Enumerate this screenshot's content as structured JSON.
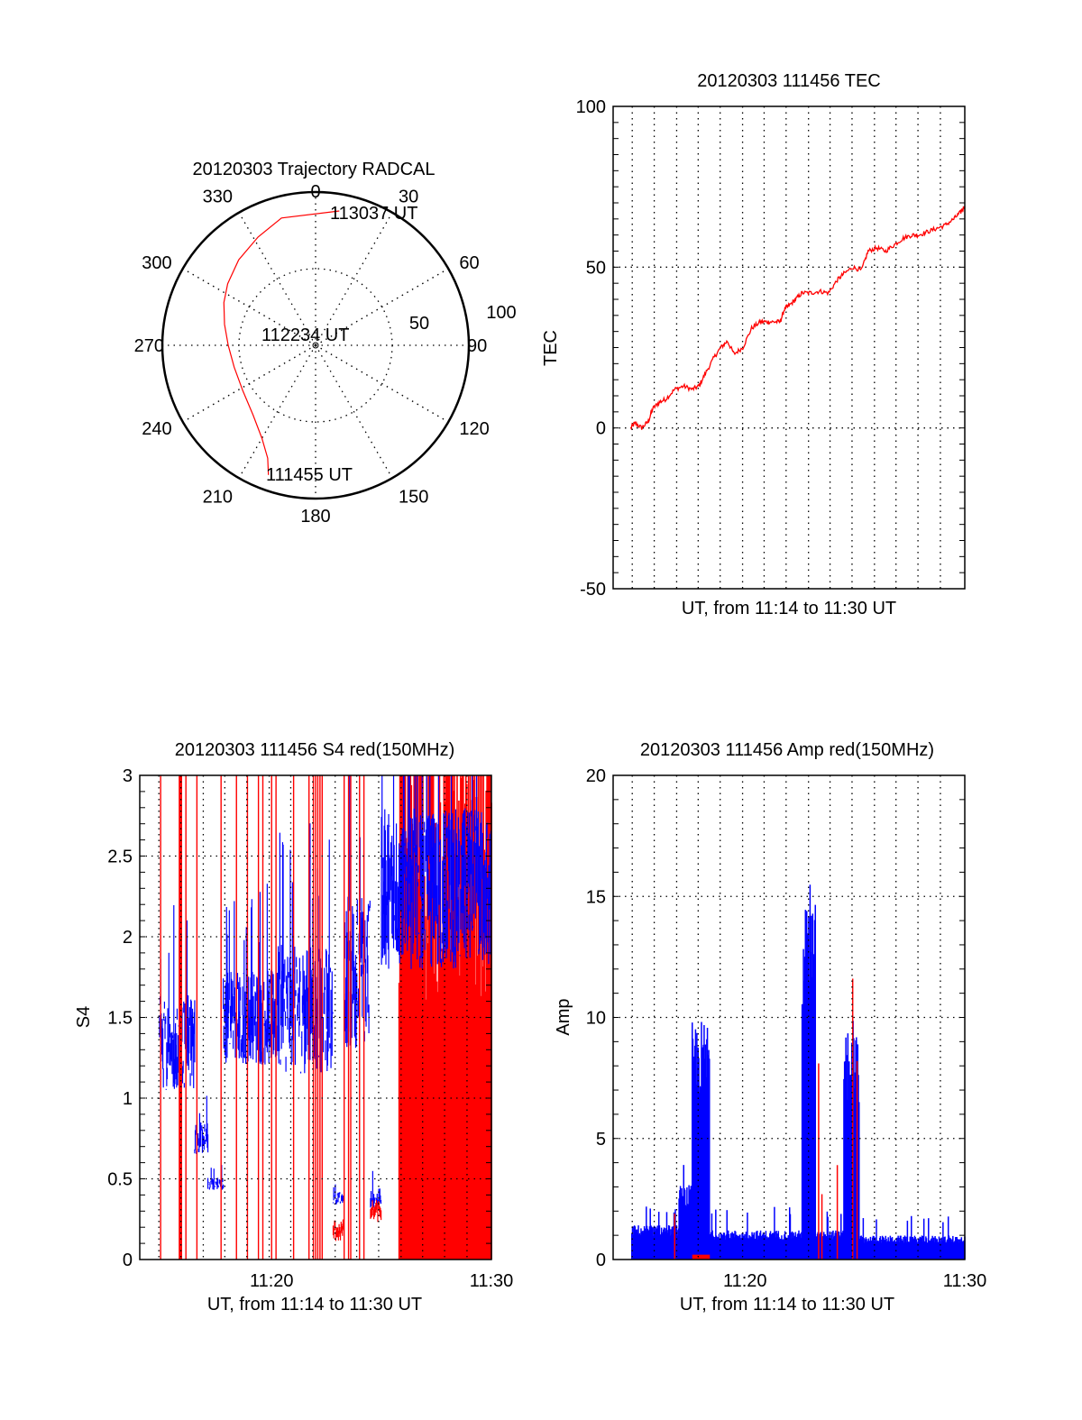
{
  "chart_data": [
    {
      "id": "trajectory",
      "type": "polar",
      "title": "20120303 Trajectory RADCAL",
      "radial_range": [
        0,
        100
      ],
      "radial_ticks": [
        50,
        100
      ],
      "angle_ticks": [
        "0",
        "30",
        "60",
        "90",
        "120",
        "150",
        "180",
        "210",
        "240",
        "270",
        "300",
        "330"
      ],
      "angle_tick_values": [
        0,
        30,
        60,
        90,
        120,
        150,
        180,
        210,
        240,
        270,
        300,
        330
      ],
      "grid": true,
      "line_color": "#ff0000",
      "trajectory": [
        {
          "az": 200,
          "r": 90
        },
        {
          "az": 203,
          "r": 80
        },
        {
          "az": 210,
          "r": 70
        },
        {
          "az": 222,
          "r": 61
        },
        {
          "az": 238,
          "r": 56
        },
        {
          "az": 255,
          "r": 55
        },
        {
          "az": 270,
          "r": 57
        },
        {
          "az": 283,
          "r": 61
        },
        {
          "az": 295,
          "r": 66
        },
        {
          "az": 305,
          "r": 70
        },
        {
          "az": 318,
          "r": 75
        },
        {
          "az": 332,
          "r": 80
        },
        {
          "az": 345,
          "r": 86
        },
        {
          "az": 10,
          "r": 89
        }
      ],
      "annotations": [
        {
          "text": "111455 UT",
          "az": 200,
          "r": 90
        },
        {
          "text": "112234 UT",
          "az": 0,
          "r": 0
        },
        {
          "text": "113037 UT",
          "az": 10,
          "r": 89
        }
      ]
    },
    {
      "id": "tec",
      "type": "line",
      "title": "20120303 111456 TEC",
      "xlabel": "UT, from 11:14 to 11:30 UT",
      "ylabel": "TEC",
      "xlim_minutes": [
        0,
        16
      ],
      "ylim": [
        -50,
        100
      ],
      "yticks": [
        "-50",
        "0",
        "50",
        "100"
      ],
      "ytick_values": [
        -50,
        0,
        50,
        100
      ],
      "grid": true,
      "color": "#ff0000",
      "x_minutes": [
        0.8,
        1.0,
        1.3,
        1.6,
        1.8,
        2.1,
        2.4,
        2.8,
        3.2,
        3.6,
        3.9,
        4.2,
        4.6,
        4.9,
        5.2,
        5.5,
        5.9,
        6.3,
        6.7,
        7.0,
        7.3,
        7.6,
        7.8,
        8.0,
        8.3,
        8.6,
        9.0,
        9.4,
        9.8,
        10.2,
        10.5,
        10.9,
        11.3,
        11.6,
        12.0,
        12.4,
        12.8,
        13.2,
        13.6,
        13.9,
        14.3,
        14.7,
        15.1,
        15.5,
        15.8,
        16.0
      ],
      "values": [
        0,
        1.5,
        0,
        2,
        6,
        8,
        9,
        12,
        13,
        12,
        13,
        17,
        22,
        25,
        27,
        23,
        25,
        31,
        33,
        33,
        33,
        33,
        37,
        38,
        40,
        42,
        42,
        42.5,
        42,
        46,
        48,
        50,
        49,
        55,
        56,
        55,
        57,
        59,
        60,
        60,
        61,
        62,
        63,
        65,
        67,
        69
      ]
    },
    {
      "id": "s4",
      "type": "line",
      "title": "20120303 111456 S4 red(150MHz)",
      "xlabel": "UT, from 11:14 to 11:30 UT",
      "ylabel": "S4",
      "xlim_minutes": [
        0,
        16
      ],
      "xticks": [
        "11:20",
        "11:30"
      ],
      "xtick_minutes": [
        6,
        16
      ],
      "ylim": [
        0,
        3
      ],
      "yticks": [
        "0",
        "0.5",
        "1",
        "1.5",
        "2",
        "2.5",
        "3"
      ],
      "ytick_values": [
        0,
        0.5,
        1,
        1.5,
        2,
        2.5,
        3
      ],
      "grid": true,
      "series": [
        {
          "name": "blue",
          "color": "#0000ff",
          "segments": [
            {
              "from": 0.9,
              "to": 2.5,
              "center": 1.35,
              "spread": 0.3
            },
            {
              "from": 2.5,
              "to": 3.1,
              "center": 0.75,
              "spread": 0.1
            },
            {
              "from": 3.1,
              "to": 3.8,
              "center": 0.47,
              "spread": 0.04
            },
            {
              "from": 3.8,
              "to": 6.3,
              "center": 1.5,
              "spread": 0.3
            },
            {
              "from": 6.3,
              "to": 8.8,
              "center": 1.55,
              "spread": 0.4
            },
            {
              "from": 8.8,
              "to": 9.3,
              "center": 0.38,
              "spread": 0.04
            },
            {
              "from": 9.3,
              "to": 10.5,
              "center": 1.8,
              "spread": 0.5
            },
            {
              "from": 10.5,
              "to": 11.0,
              "center": 0.38,
              "spread": 0.06
            },
            {
              "from": 11.0,
              "to": 16.0,
              "center": 2.3,
              "spread": 0.5
            }
          ]
        },
        {
          "name": "red",
          "color": "#ff0000",
          "spike_minutes": [
            0.95,
            1.8,
            1.85,
            1.9,
            2.1,
            2.6,
            3.7,
            4.4,
            4.9,
            5.4,
            5.6,
            6.0,
            6.2,
            7.0,
            7.7,
            7.9,
            8.0,
            8.1,
            8.2,
            8.3,
            9.3,
            9.5,
            9.6,
            10.0,
            10.2
          ],
          "low_segments": [
            {
              "from": 8.8,
              "to": 9.3,
              "center": 0.18
            },
            {
              "from": 10.5,
              "to": 11.0,
              "center": 0.3
            }
          ],
          "dense_from": 11.8,
          "dense_to": 16.0
        }
      ]
    },
    {
      "id": "amp",
      "type": "bar",
      "title": "20120303 111456 Amp red(150MHz)",
      "xlabel": "UT, from 11:14 to 11:30 UT",
      "ylabel": "Amp",
      "xlim_minutes": [
        0,
        16
      ],
      "xticks": [
        "11:20",
        "11:30"
      ],
      "xtick_minutes": [
        6,
        16
      ],
      "ylim": [
        0,
        20
      ],
      "yticks": [
        "0",
        "5",
        "10",
        "15",
        "20"
      ],
      "ytick_values": [
        0,
        5,
        10,
        15,
        20
      ],
      "grid": true,
      "series": [
        {
          "name": "blue",
          "color": "#0000ff",
          "envelope": [
            {
              "from": 0.85,
              "to": 3.0,
              "level": 1.3,
              "peak": 2.2
            },
            {
              "from": 3.0,
              "to": 3.6,
              "level": 2.8,
              "peak": 4.5
            },
            {
              "from": 3.6,
              "to": 4.4,
              "level": 9.0,
              "peak": 10.8
            },
            {
              "from": 4.4,
              "to": 8.6,
              "level": 1.1,
              "peak": 2.2
            },
            {
              "from": 8.6,
              "to": 9.2,
              "level": 13.5,
              "peak": 17.7
            },
            {
              "from": 9.2,
              "to": 10.5,
              "level": 1.1,
              "peak": 2.0
            },
            {
              "from": 10.5,
              "to": 11.2,
              "level": 8.5,
              "peak": 10.4
            },
            {
              "from": 11.2,
              "to": 16.0,
              "level": 0.9,
              "peak": 1.8
            }
          ]
        },
        {
          "name": "red",
          "color": "#ff0000",
          "spikes": [
            {
              "minute": 2.8,
              "value": 1.9
            },
            {
              "minute": 9.35,
              "value": 8.1
            },
            {
              "minute": 9.5,
              "value": 2.7
            },
            {
              "minute": 10.2,
              "value": 3.9
            },
            {
              "minute": 10.9,
              "value": 11.6
            },
            {
              "minute": 11.1,
              "value": 8.2
            }
          ],
          "low_band": {
            "from": 3.6,
            "to": 4.4,
            "value": 0.2
          }
        }
      ]
    }
  ],
  "labels": {
    "polar_title": "20120303 Trajectory RADCAL",
    "polar_r50": "50",
    "polar_r100": "100",
    "polar_start": "111455 UT",
    "polar_mid": "112234 UT",
    "polar_end": "113037 UT",
    "tec_title": "20120303 111456 TEC",
    "tec_xlabel": "UT, from 11:14 to 11:30 UT",
    "tec_ylabel": "TEC",
    "s4_title": "20120303 111456 S4 red(150MHz)",
    "s4_xlabel": "UT, from 11:14 to 11:30 UT",
    "s4_ylabel": "S4",
    "amp_title": "20120303 111456 Amp red(150MHz)",
    "amp_xlabel": "UT, from 11:14 to 11:30 UT",
    "amp_ylabel": "Amp"
  }
}
